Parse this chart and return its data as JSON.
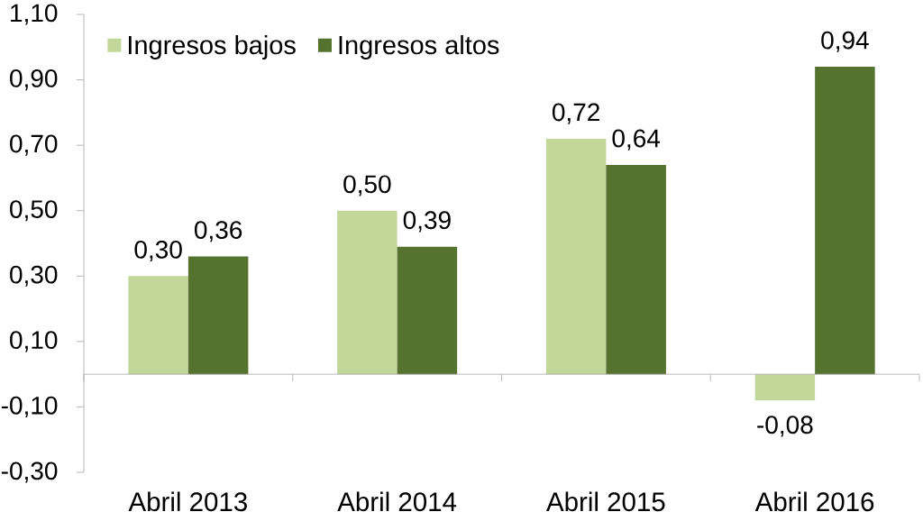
{
  "chart_data": {
    "type": "bar",
    "categories": [
      "Abril 2013",
      "Abril 2014",
      "Abril 2015",
      "Abril 2016"
    ],
    "series": [
      {
        "name": "Ingresos bajos",
        "color": "#c4d79b",
        "values": [
          0.3,
          0.5,
          0.72,
          -0.08
        ],
        "value_labels": [
          "0,30",
          "0,50",
          "0,72",
          "-0,08"
        ]
      },
      {
        "name": "Ingresos altos",
        "color": "#55732f",
        "values": [
          0.36,
          0.39,
          0.64,
          0.94
        ],
        "value_labels": [
          "0,36",
          "0,39",
          "0,64",
          "0,94"
        ]
      }
    ],
    "ylim": [
      -0.3,
      1.1
    ],
    "yticks": [
      {
        "value": -0.3,
        "label": "-0,30"
      },
      {
        "value": -0.1,
        "label": "-0,10"
      },
      {
        "value": 0.1,
        "label": "0,10"
      },
      {
        "value": 0.3,
        "label": "0,30"
      },
      {
        "value": 0.5,
        "label": "0,50"
      },
      {
        "value": 0.7,
        "label": "0,70"
      },
      {
        "value": 0.9,
        "label": "0,90"
      },
      {
        "value": 1.1,
        "label": "1,10"
      }
    ],
    "legend": "top left"
  }
}
